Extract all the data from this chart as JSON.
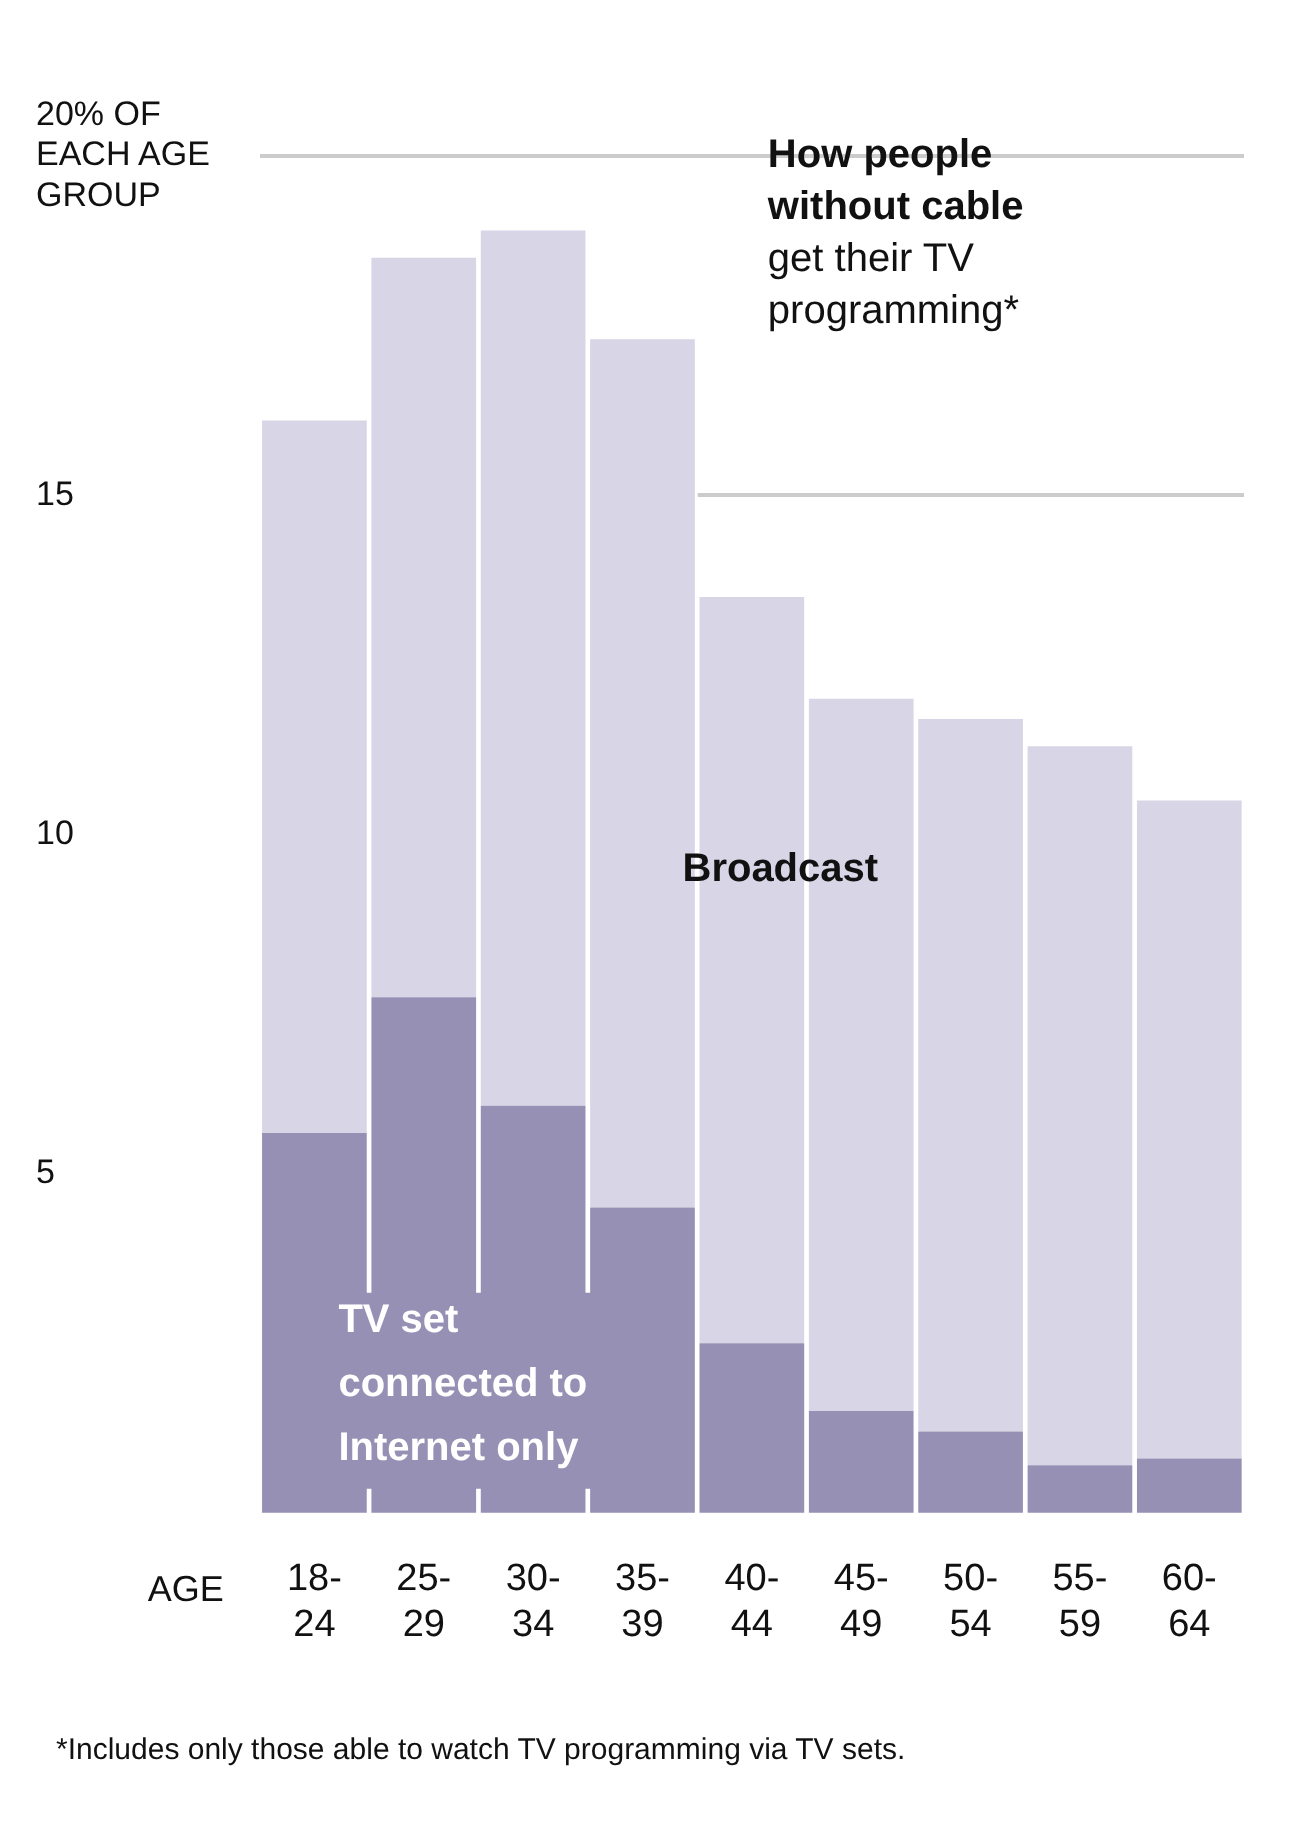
{
  "chart_data": {
    "type": "bar",
    "title": "How people without cable",
    "subtitle": "get their TV programming*",
    "xlabel": "AGE",
    "categories": [
      "18-24",
      "25-29",
      "30-34",
      "35-39",
      "40-44",
      "45-49",
      "50-54",
      "55-59",
      "60-64"
    ],
    "series": [
      {
        "name": "TV set connected to Internet only",
        "color": "#9590b4",
        "values": [
          5.6,
          7.6,
          6.0,
          4.5,
          2.5,
          1.5,
          1.2,
          0.7,
          0.8
        ]
      },
      {
        "name": "Broadcast",
        "color": "#d8d5e6",
        "values": [
          10.5,
          10.9,
          12.9,
          12.8,
          11.0,
          10.5,
          10.5,
          10.6,
          9.7
        ]
      }
    ],
    "stacked": true,
    "ylim": [
      0,
      20
    ],
    "yticks": [
      5,
      10,
      15,
      {
        "value": 20,
        "label": "20% OF EACH AGE GROUP"
      }
    ],
    "grid": "y",
    "legend": false,
    "annotations": [
      "*Includes only those able to watch TV programming via TV sets."
    ]
  }
}
